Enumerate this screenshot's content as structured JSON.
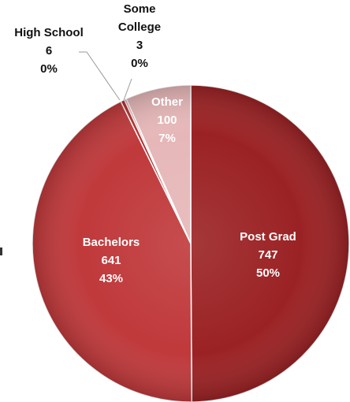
{
  "chart_data": {
    "type": "pie",
    "title": "",
    "start_angle_deg": 0,
    "direction": "clockwise",
    "slices": [
      {
        "name": "Post Grad",
        "value": 747,
        "percent_label": "50%",
        "color": "#9b2224",
        "label_color": "#ffffff",
        "label_position": "inside"
      },
      {
        "name": "Bachelors",
        "value": 641,
        "percent_label": "43%",
        "color": "#c0393b",
        "label_color": "#ffffff",
        "label_position": "inside"
      },
      {
        "name": "High School",
        "value": 6,
        "percent_label": "0%",
        "color": "#b5302f",
        "label_color": "#111111",
        "label_position": "outside-left"
      },
      {
        "name": "Some College",
        "value": 3,
        "percent_label": "0%",
        "color": "#d98a8a",
        "label_color": "#111111",
        "label_position": "outside-top"
      },
      {
        "name": "Other",
        "value": 100,
        "percent_label": "7%",
        "color": "#e6b7b8",
        "label_color": "#ffffff",
        "label_position": "inside"
      }
    ]
  }
}
